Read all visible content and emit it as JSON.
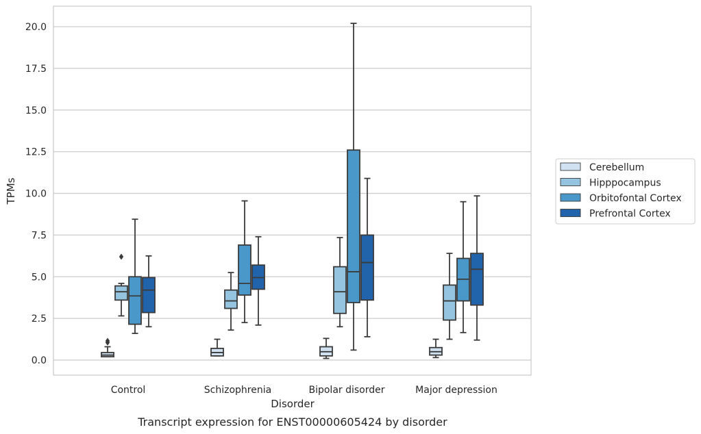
{
  "chart_data": {
    "type": "box",
    "caption": "Transcript expression for ENST00000605424 by disorder",
    "xlabel": "Disorder",
    "ylabel": "TPMs",
    "ylim": [
      -0.9,
      21.2
    ],
    "yticks": [
      0.0,
      2.5,
      5.0,
      7.5,
      10.0,
      12.5,
      15.0,
      17.5,
      20.0
    ],
    "ytick_labels": [
      "0.0",
      "2.5",
      "5.0",
      "7.5",
      "10.0",
      "12.5",
      "15.0",
      "17.5",
      "20.0"
    ],
    "grid": "horizontal",
    "legend_position": "right",
    "categories": [
      "Control",
      "Schizophrenia",
      "Bipolar disorder",
      "Major depression"
    ],
    "series": [
      {
        "name": "Cerebellum",
        "color": "#d0e1f2",
        "boxes": [
          {
            "whislo": 0.2,
            "q1": 0.2,
            "med": 0.3,
            "q3": 0.45,
            "whishi": 0.8,
            "fliers": [
              1.05,
              1.15
            ]
          },
          {
            "whislo": 0.25,
            "q1": 0.25,
            "med": 0.45,
            "q3": 0.7,
            "whishi": 1.25,
            "fliers": []
          },
          {
            "whislo": 0.1,
            "q1": 0.25,
            "med": 0.5,
            "q3": 0.8,
            "whishi": 1.3,
            "fliers": []
          },
          {
            "whislo": 0.15,
            "q1": 0.3,
            "med": 0.5,
            "q3": 0.75,
            "whishi": 1.25,
            "fliers": []
          }
        ]
      },
      {
        "name": "Hipppocampus",
        "color": "#94c4df",
        "boxes": [
          {
            "whislo": 2.65,
            "q1": 3.6,
            "med": 4.1,
            "q3": 4.45,
            "whishi": 4.6,
            "fliers": [
              6.2
            ]
          },
          {
            "whislo": 1.8,
            "q1": 3.1,
            "med": 3.55,
            "q3": 4.2,
            "whishi": 5.25,
            "fliers": []
          },
          {
            "whislo": 2.0,
            "q1": 2.8,
            "med": 4.1,
            "q3": 5.6,
            "whishi": 7.35,
            "fliers": []
          },
          {
            "whislo": 1.25,
            "q1": 2.4,
            "med": 3.55,
            "q3": 4.5,
            "whishi": 6.4,
            "fliers": []
          }
        ]
      },
      {
        "name": "Orbitofontal Cortex",
        "color": "#4a98c9",
        "boxes": [
          {
            "whislo": 1.6,
            "q1": 2.15,
            "med": 3.85,
            "q3": 5.0,
            "whishi": 8.45,
            "fliers": []
          },
          {
            "whislo": 2.25,
            "q1": 3.9,
            "med": 4.6,
            "q3": 6.9,
            "whishi": 9.55,
            "fliers": []
          },
          {
            "whislo": 0.6,
            "q1": 3.45,
            "med": 5.3,
            "q3": 12.6,
            "whishi": 20.2,
            "fliers": []
          },
          {
            "whislo": 1.65,
            "q1": 3.55,
            "med": 4.85,
            "q3": 6.1,
            "whishi": 9.5,
            "fliers": []
          }
        ]
      },
      {
        "name": "Prefrontal Cortex",
        "color": "#2164ab",
        "boxes": [
          {
            "whislo": 2.0,
            "q1": 2.85,
            "med": 4.2,
            "q3": 4.95,
            "whishi": 6.25,
            "fliers": []
          },
          {
            "whislo": 2.1,
            "q1": 4.25,
            "med": 4.95,
            "q3": 5.7,
            "whishi": 7.4,
            "fliers": []
          },
          {
            "whislo": 1.4,
            "q1": 3.6,
            "med": 5.85,
            "q3": 7.5,
            "whishi": 10.9,
            "fliers": []
          },
          {
            "whislo": 1.2,
            "q1": 3.3,
            "med": 5.45,
            "q3": 6.4,
            "whishi": 9.85,
            "fliers": []
          }
        ]
      }
    ]
  },
  "style": {
    "line_color": "#3a3a3a",
    "grid_color": "#cccccc",
    "frame_color": "#cccccc"
  }
}
